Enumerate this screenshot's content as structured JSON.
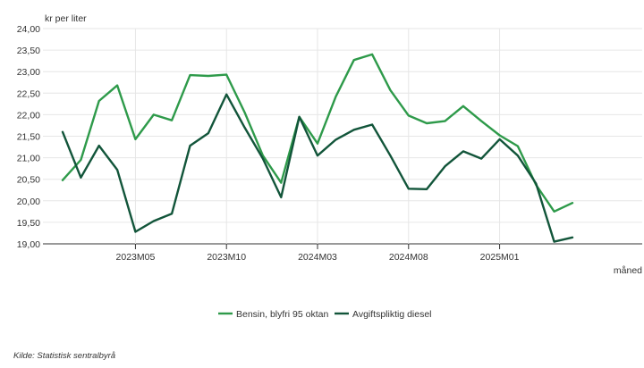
{
  "chart_data": {
    "type": "line",
    "ylabel": "kr per liter",
    "xlabel": "måned",
    "ylim": [
      19,
      24
    ],
    "y_ticks": [
      "19,00",
      "19,50",
      "20,00",
      "20,50",
      "21,00",
      "21,50",
      "22,00",
      "22,50",
      "23,00",
      "23,50",
      "24,00"
    ],
    "x_ticks": [
      "2023M05",
      "2023M10",
      "2024M03",
      "2024M08",
      "2025M01"
    ],
    "x_tick_positions": [
      4,
      9,
      14,
      19,
      24
    ],
    "grid": true,
    "legend_position": "bottom",
    "series": [
      {
        "name": "Bensin, blyfri 95 oktan",
        "color": "#2e9a4a",
        "values": [
          20.48,
          20.95,
          22.32,
          22.68,
          21.43,
          22.0,
          21.87,
          22.92,
          22.9,
          22.93,
          22.05,
          21.05,
          20.42,
          21.95,
          21.33,
          22.42,
          23.27,
          23.4,
          22.57,
          21.98,
          21.8,
          21.85,
          22.2,
          21.85,
          21.52,
          21.27,
          20.37,
          19.75,
          19.95
        ]
      },
      {
        "name": "Avgiftspliktig diesel",
        "color": "#12553a",
        "values": [
          21.6,
          20.54,
          21.28,
          20.72,
          19.28,
          19.53,
          19.7,
          21.28,
          21.57,
          22.47,
          21.7,
          20.98,
          20.08,
          21.95,
          21.05,
          21.42,
          21.65,
          21.77,
          21.05,
          20.28,
          20.27,
          20.8,
          21.15,
          20.98,
          21.43,
          21.05,
          20.4,
          19.05,
          19.15
        ]
      }
    ]
  },
  "source_note": "Kilde:  Statistisk sentralbyrå"
}
